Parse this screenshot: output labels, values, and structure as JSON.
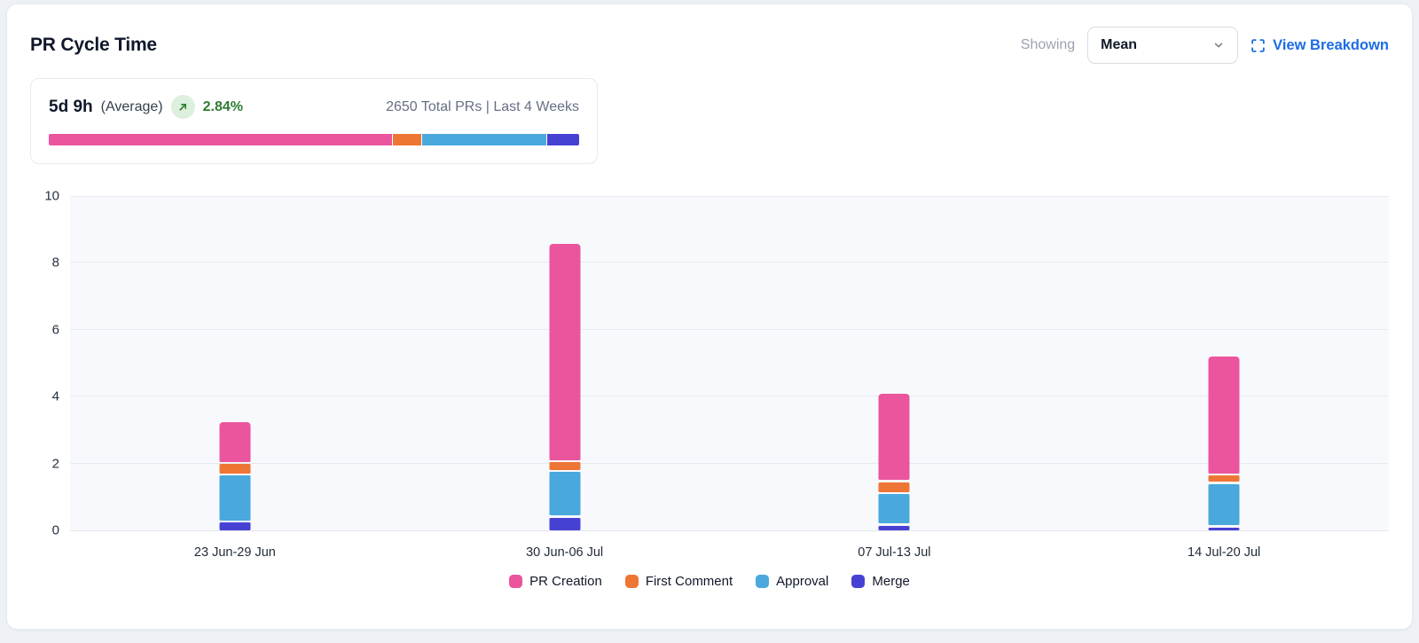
{
  "header": {
    "title": "PR Cycle Time",
    "showing_label": "Showing",
    "metric_dropdown": {
      "selected": "Mean"
    },
    "view_breakdown": {
      "label": "View Breakdown",
      "color": "#1d6ce5"
    }
  },
  "summary_card": {
    "value": "5d 9h",
    "value_qualifier": "(Average)",
    "trend": {
      "direction": "up",
      "pct": "2.84%",
      "color": "#2e7d32"
    },
    "meta": "2650 Total PRs | Last 4 Weeks",
    "distribution_pct": [
      {
        "name": "PR Creation",
        "pct": 65,
        "color": "#ea559d"
      },
      {
        "name": "First Comment",
        "pct": 5.5,
        "color": "#ee7635"
      },
      {
        "name": "Approval",
        "pct": 23.5,
        "color": "#49a8dc"
      },
      {
        "name": "Merge",
        "pct": 6,
        "color": "#4741d3"
      }
    ]
  },
  "chart_data": {
    "type": "bar",
    "stacked": true,
    "title": "PR Cycle Time",
    "categories": [
      "23 Jun-29 Jun",
      "30 Jun-06 Jul",
      "07 Jul-13 Jul",
      "14 Jul-20 Jul"
    ],
    "series": [
      {
        "name": "PR Creation",
        "color": "#ea559d",
        "values": [
          1.25,
          6.5,
          2.65,
          3.55
        ]
      },
      {
        "name": "First Comment",
        "color": "#ee7635",
        "values": [
          0.35,
          0.3,
          0.35,
          0.25
        ]
      },
      {
        "name": "Approval",
        "color": "#49a8dc",
        "values": [
          1.4,
          1.35,
          0.95,
          1.3
        ]
      },
      {
        "name": "Merge",
        "color": "#4741d3",
        "values": [
          0.3,
          0.45,
          0.2,
          0.15
        ]
      }
    ],
    "stack_order_bottom_to_top": [
      "Merge",
      "Approval",
      "First Comment",
      "PR Creation"
    ],
    "stack_totals": [
      3.3,
      8.6,
      4.15,
      5.25
    ],
    "xlabel": "",
    "ylabel": "",
    "ylim": [
      0,
      10
    ],
    "yticks": [
      0,
      2,
      4,
      6,
      8,
      10
    ],
    "grid": true,
    "plot_background": "#f8f9fc",
    "legend_position": "bottom",
    "legend": [
      "PR Creation",
      "First Comment",
      "Approval",
      "Merge"
    ]
  }
}
